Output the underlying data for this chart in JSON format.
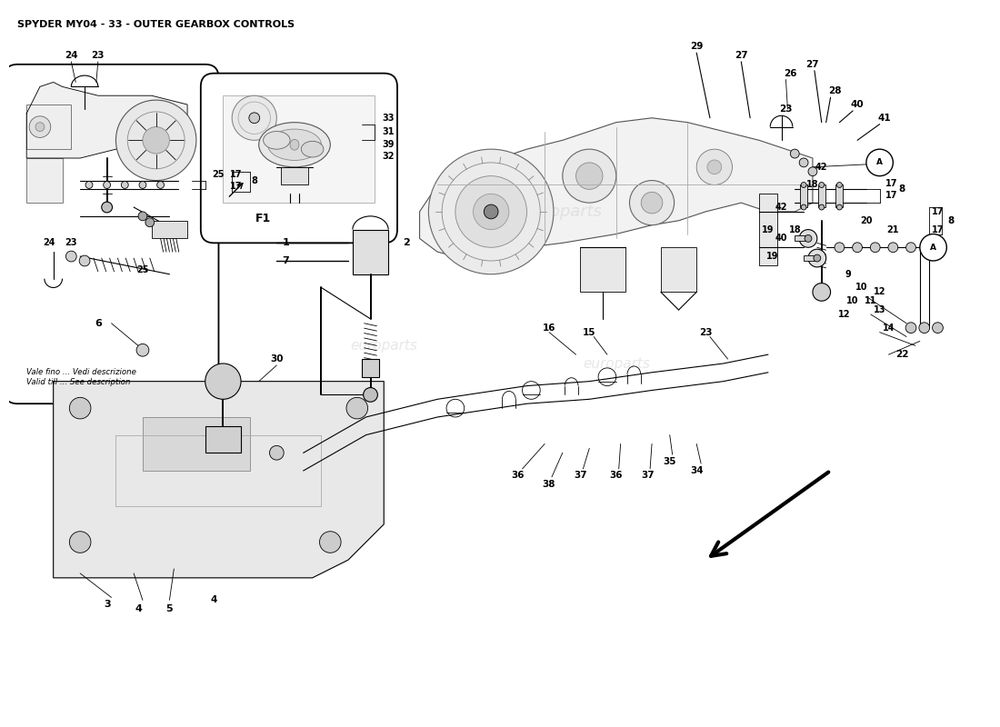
{
  "title": "SPYDER MY04 - 33 - OUTER GEARBOX CONTROLS",
  "bg_color": "#ffffff",
  "fig_width": 11.0,
  "fig_height": 8.0,
  "note_text": "Vale fino ... Vedi descrizione\nValid till ... See description",
  "f1_label": "F1",
  "watermark": "europarts"
}
